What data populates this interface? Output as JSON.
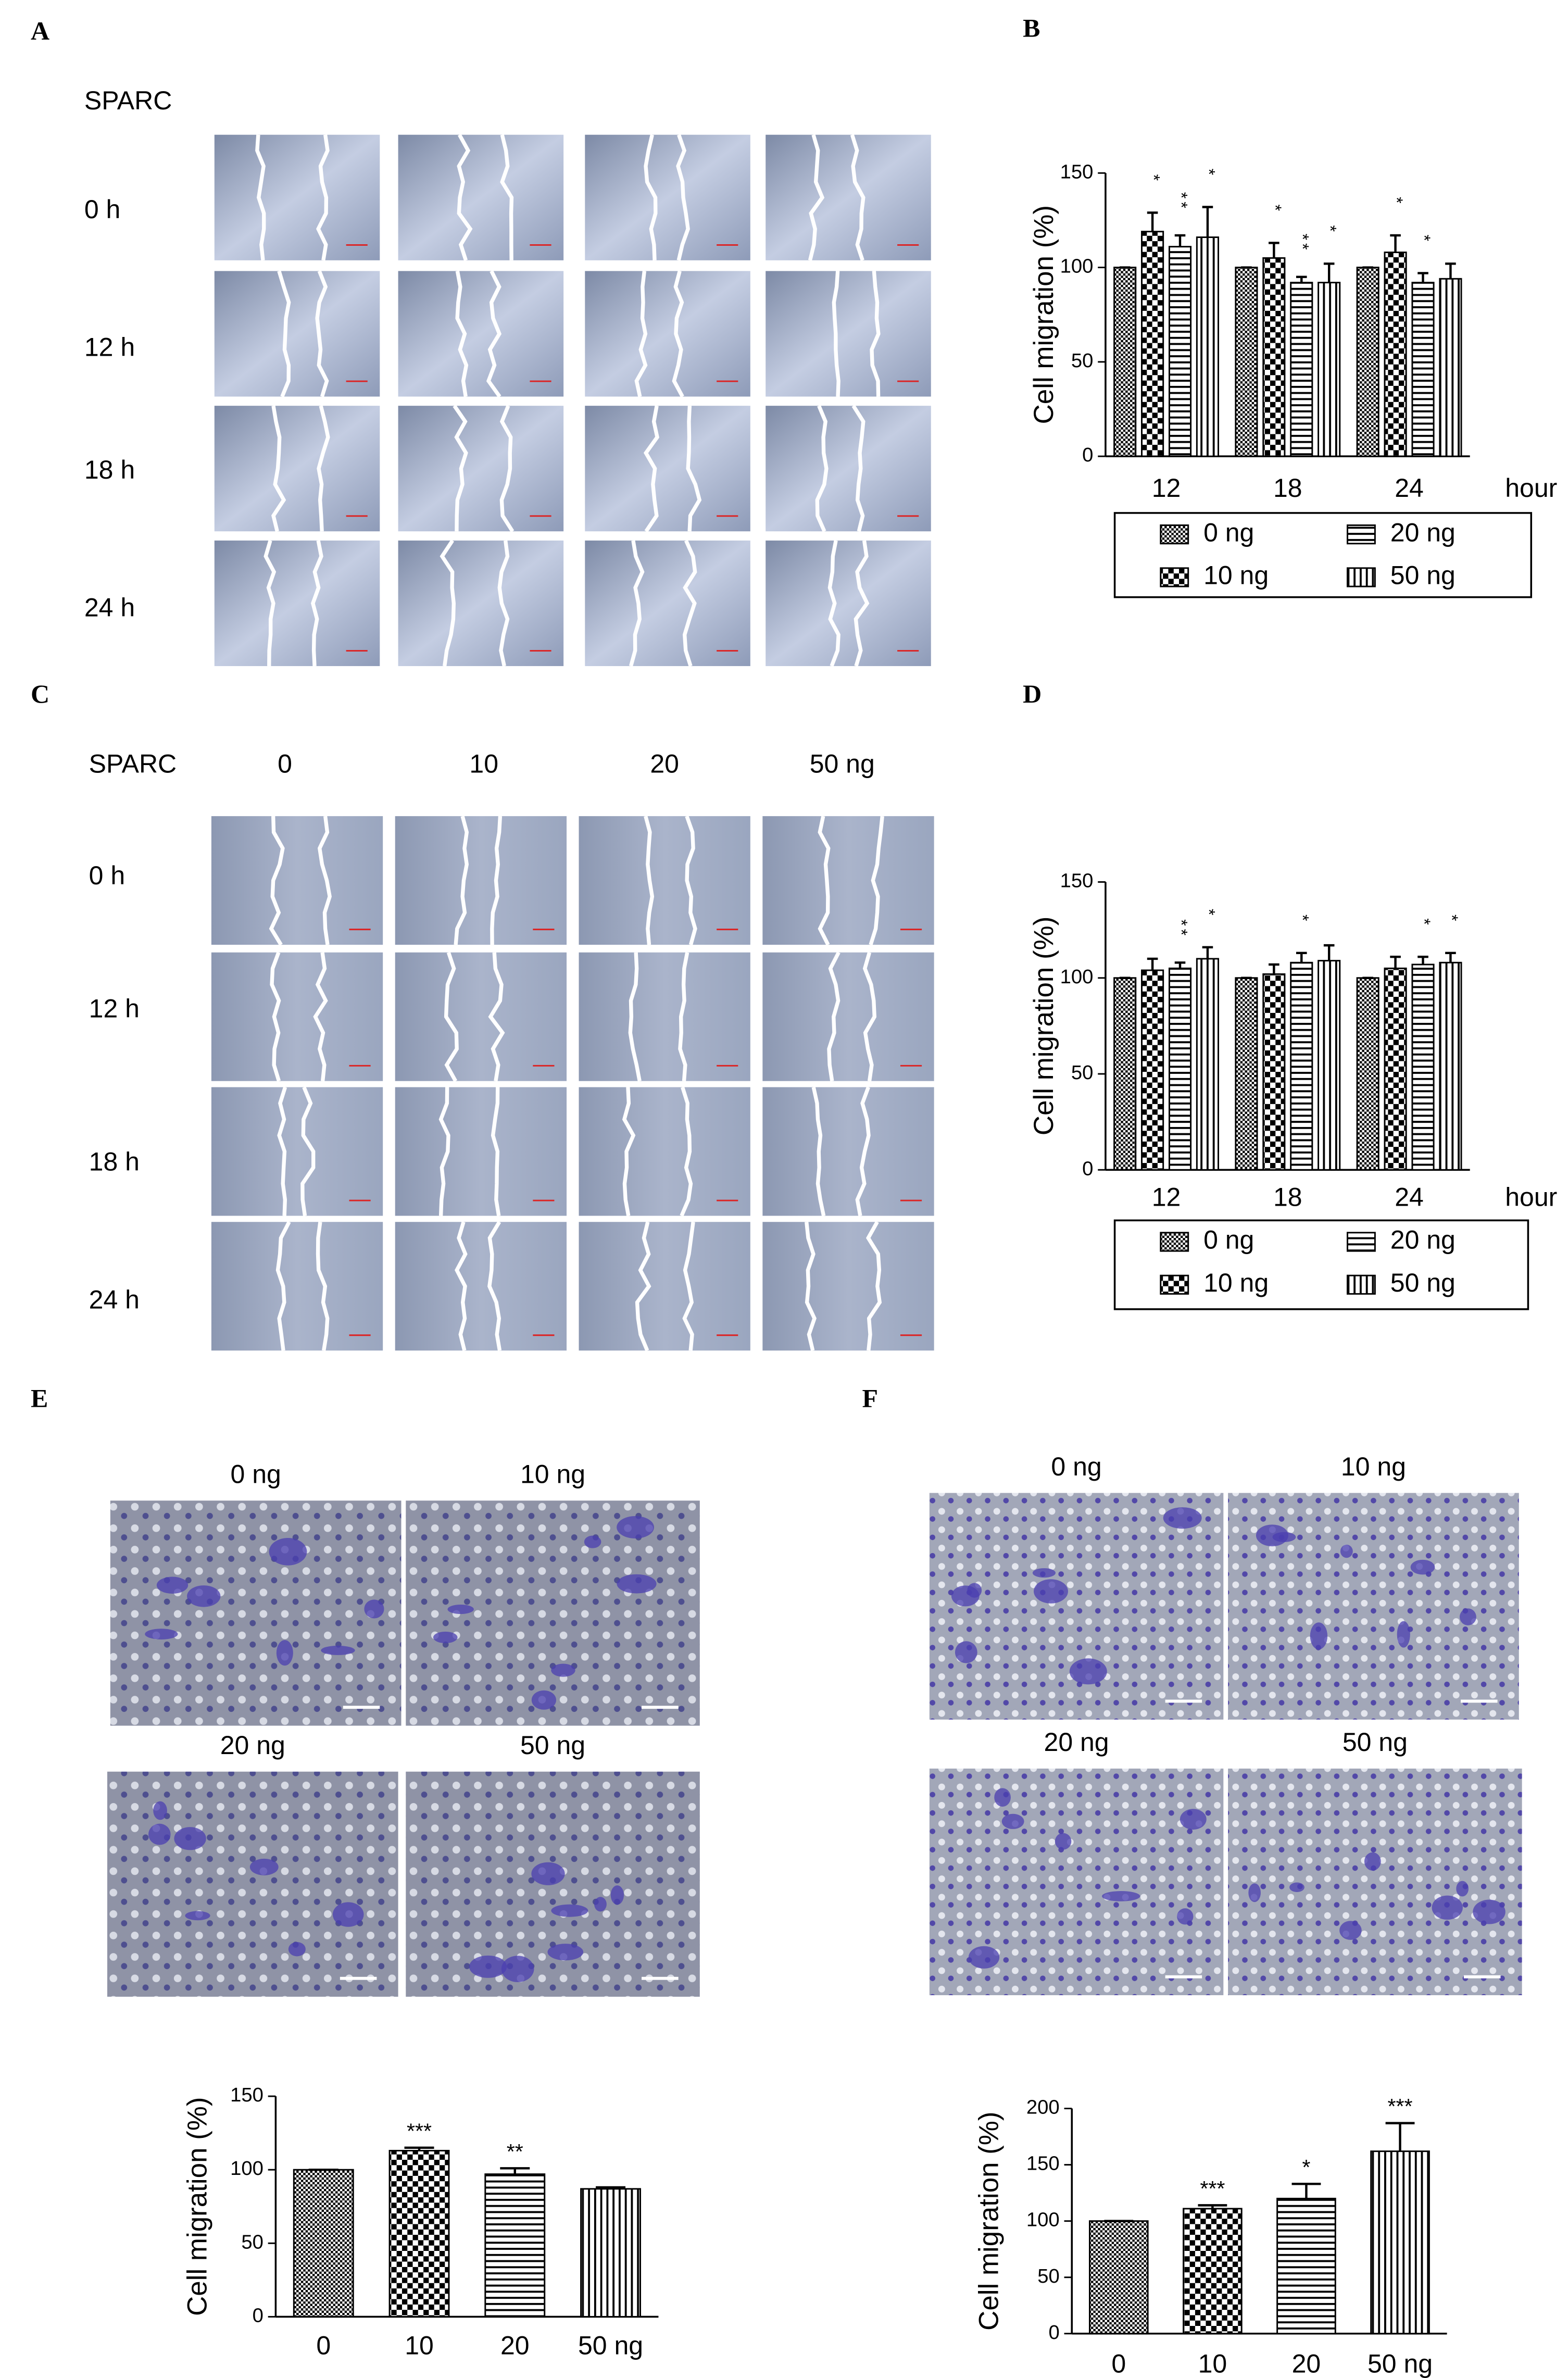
{
  "panels": {
    "A": {
      "letter": "A",
      "title": "SPARC",
      "rows": [
        "0 h",
        "12 h",
        "18 h",
        "24 h"
      ]
    },
    "B": {
      "letter": "B"
    },
    "C": {
      "letter": "C",
      "title": "SPARC",
      "columns": [
        "0",
        "10",
        "20",
        "50 ng"
      ],
      "rows": [
        "0 h",
        "12 h",
        "18 h",
        "24 h"
      ]
    },
    "D": {
      "letter": "D"
    },
    "E": {
      "letter": "E",
      "images": [
        "0 ng",
        "10 ng",
        "20 ng",
        "50 ng"
      ]
    },
    "F": {
      "letter": "F",
      "images": [
        "0 ng",
        "10 ng",
        "20 ng",
        "50 ng"
      ]
    }
  },
  "chart_data": [
    {
      "type": "grouped-bar",
      "ylabel": "Cell migration (%)",
      "xlabel": "hour",
      "categories": [
        "12",
        "18",
        "24"
      ],
      "ylim": [
        0,
        150
      ],
      "yticks": [
        0,
        50,
        100,
        150
      ],
      "significance_stacked": true,
      "series": [
        {
          "name": "0 ng",
          "pattern": "fine-checker",
          "values": [
            100,
            100,
            100
          ],
          "errors": [
            0,
            0,
            0
          ],
          "significance": [
            null,
            null,
            null
          ]
        },
        {
          "name": "10 ng",
          "pattern": "checker",
          "values": [
            119,
            105,
            108
          ],
          "errors": [
            10,
            8,
            9
          ],
          "significance": [
            "*",
            "*",
            "*"
          ]
        },
        {
          "name": "20 ng",
          "pattern": "hlines",
          "values": [
            111,
            92,
            92
          ],
          "errors": [
            6,
            3,
            5
          ],
          "significance": [
            "**",
            "**",
            "*"
          ]
        },
        {
          "name": "50 ng",
          "pattern": "vlines",
          "values": [
            116,
            92,
            94
          ],
          "errors": [
            16,
            10,
            8
          ],
          "significance": [
            "*",
            "*",
            null
          ]
        }
      ]
    },
    {
      "type": "grouped-bar",
      "ylabel": "Cell migration (%)",
      "xlabel": "hour",
      "categories": [
        "12",
        "18",
        "24"
      ],
      "ylim": [
        0,
        150
      ],
      "yticks": [
        0,
        50,
        100,
        150
      ],
      "significance_stacked": true,
      "series": [
        {
          "name": "0 ng",
          "pattern": "fine-checker",
          "values": [
            100,
            100,
            100
          ],
          "errors": [
            0,
            0,
            0
          ],
          "significance": [
            null,
            null,
            null
          ]
        },
        {
          "name": "10 ng",
          "pattern": "checker",
          "values": [
            104,
            102,
            105
          ],
          "errors": [
            6,
            5,
            6
          ],
          "significance": [
            null,
            null,
            null
          ]
        },
        {
          "name": "20 ng",
          "pattern": "hlines",
          "values": [
            105,
            108,
            107
          ],
          "errors": [
            3,
            5,
            4
          ],
          "significance": [
            "**",
            "*",
            "*"
          ]
        },
        {
          "name": "50 ng",
          "pattern": "vlines",
          "values": [
            110,
            109,
            108
          ],
          "errors": [
            6,
            8,
            5
          ],
          "significance": [
            "*",
            null,
            "*"
          ]
        }
      ]
    },
    {
      "type": "bar",
      "ylabel": "Cell migration (%)",
      "categories": [
        "0",
        "10",
        "20",
        "50 ng"
      ],
      "ylim": [
        0,
        150
      ],
      "yticks": [
        0,
        50,
        100,
        150
      ],
      "patterns": [
        "fine-checker",
        "checker",
        "hlines",
        "vlines"
      ],
      "values": [
        100,
        113,
        97,
        87
      ],
      "errors": [
        0,
        2,
        4,
        1
      ],
      "significance": [
        null,
        "***",
        "**",
        null
      ]
    },
    {
      "type": "bar",
      "ylabel": "Cell migration (%)",
      "categories": [
        "0",
        "10",
        "20",
        "50 ng"
      ],
      "ylim": [
        0,
        200
      ],
      "yticks": [
        0,
        50,
        100,
        150,
        200
      ],
      "patterns": [
        "fine-checker",
        "checker",
        "hlines",
        "vlines"
      ],
      "values": [
        100,
        111,
        120,
        162
      ],
      "errors": [
        0,
        3,
        13,
        25
      ],
      "significance": [
        null,
        "***",
        "*",
        "***"
      ]
    }
  ]
}
